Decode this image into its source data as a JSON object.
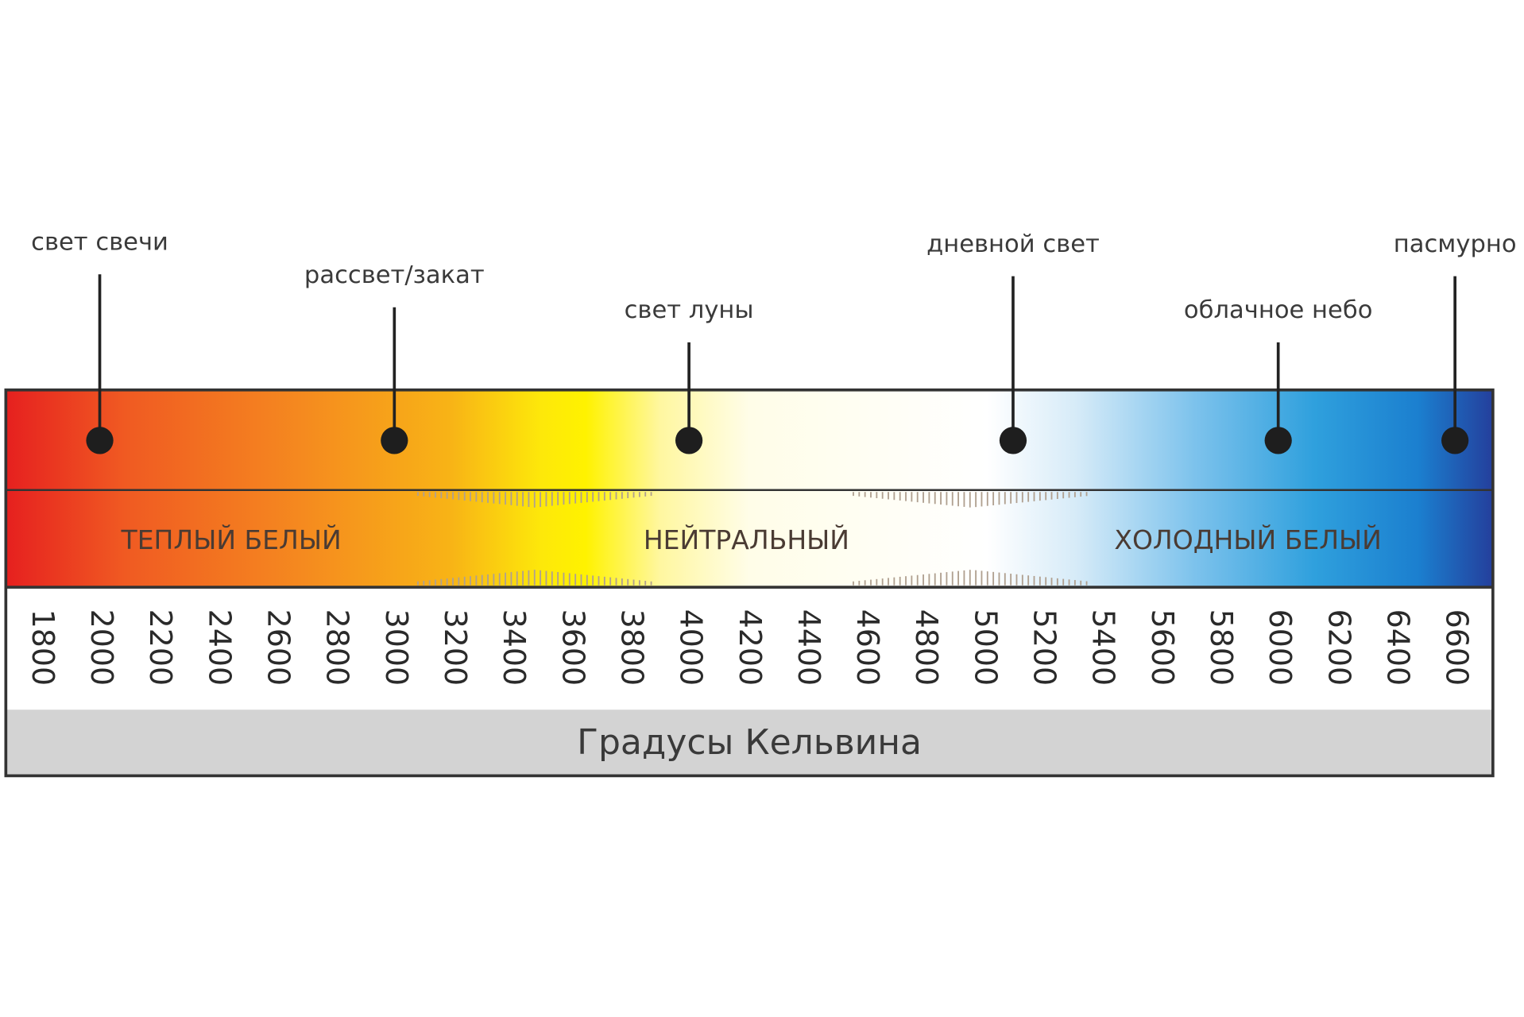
{
  "scale": {
    "ticks": [
      1800,
      2000,
      2200,
      2400,
      2600,
      2800,
      3000,
      3200,
      3400,
      3600,
      3800,
      4000,
      4200,
      4400,
      4600,
      4800,
      5000,
      5200,
      5400,
      5600,
      5800,
      6000,
      6200,
      6400,
      6600
    ]
  },
  "markers": [
    {
      "label": "свет свечи",
      "value": 2000
    },
    {
      "label": "рассвет/закат",
      "value": 3000
    },
    {
      "label": "свет луны",
      "value": 4000
    },
    {
      "label": "дневной свет",
      "value": 5100
    },
    {
      "label": "облачное небо",
      "value": 6000
    },
    {
      "label": "пасмурно",
      "value": 6600
    }
  ],
  "zones": [
    "ТЕПЛЫЙ БЕЛЫЙ",
    "НЕЙТРАЛЬНЫЙ",
    "ХОЛОДНЫЙ БЕЛЫЙ"
  ],
  "axis_title": "Градусы Кельвина"
}
